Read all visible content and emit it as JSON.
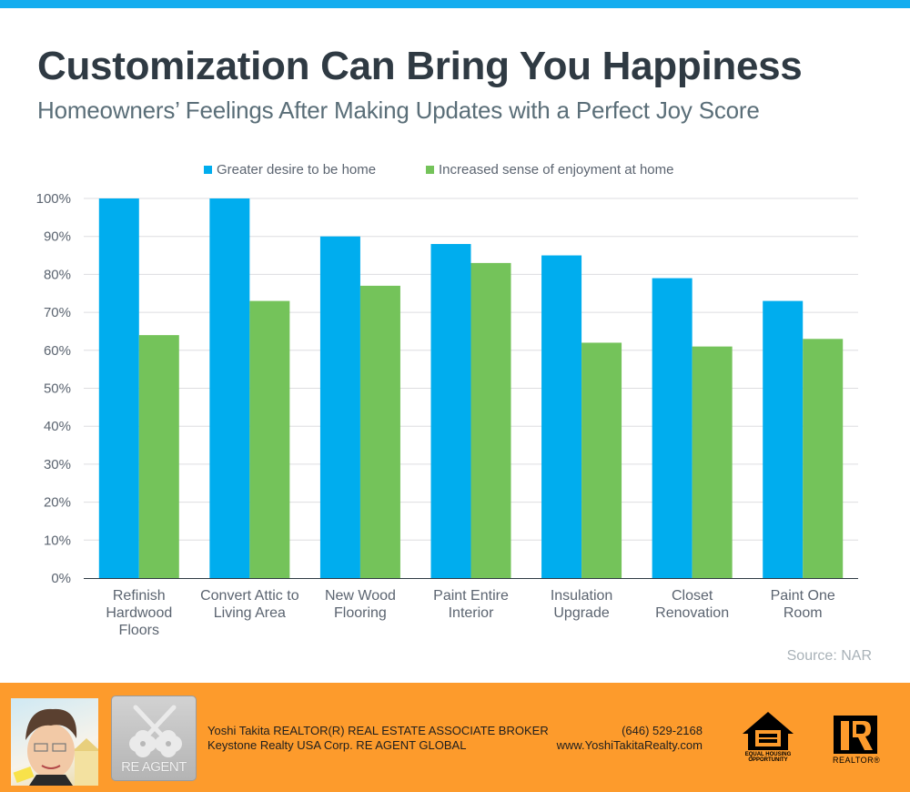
{
  "header": {
    "title": "Customization Can Bring You Happiness",
    "subtitle": "Homeowners’ Feelings After Making Updates with a Perfect Joy Score"
  },
  "colors": {
    "top_bar": "#14ADEF",
    "series_1": "#00ADEE",
    "series_2": "#74C35A",
    "gridline": "#DDDDE0",
    "axis": "#2F3A43",
    "footer": "#FD9B2C"
  },
  "chart_data": {
    "type": "bar",
    "title": "Customization Can Bring You Happiness",
    "subtitle": "Homeowners’ Feelings After Making Updates with a Perfect Joy Score",
    "categories": [
      "Refinish\nHardwood\nFloors",
      "Convert Attic to\nLiving Area",
      "New Wood\nFlooring",
      "Paint Entire\nInterior",
      "Insulation\nUpgrade",
      "Closet\nRenovation",
      "Paint One\nRoom"
    ],
    "series": [
      {
        "name": "Greater desire to be home",
        "values": [
          100,
          100,
          90,
          88,
          85,
          79,
          73
        ]
      },
      {
        "name": "Increased sense of enjoyment at home",
        "values": [
          64,
          73,
          77,
          83,
          62,
          61,
          63
        ]
      }
    ],
    "y_ticks": [
      "0%",
      "10%",
      "20%",
      "30%",
      "40%",
      "50%",
      "60%",
      "70%",
      "80%",
      "90%",
      "100%"
    ],
    "ylim": [
      0,
      100
    ],
    "xlabel": "",
    "ylabel": "",
    "grid": true,
    "legend_position": "top-center",
    "source": "Source: NAR"
  },
  "footer": {
    "agent_line_1": "Yoshi Takita REALTOR(R) REAL ESTATE ASSOCIATE BROKER",
    "agent_line_2": "Keystone Realty USA Corp.  RE AGENT GLOBAL",
    "phone": "(646) 529-2168",
    "website": "www.YoshiTakitaRealty.com",
    "logo_text": "RE AGENT",
    "eho_text_1": "EQUAL HOUSING",
    "eho_text_2": "OPPORTUNITY",
    "realtor_text": "REALTOR®"
  }
}
